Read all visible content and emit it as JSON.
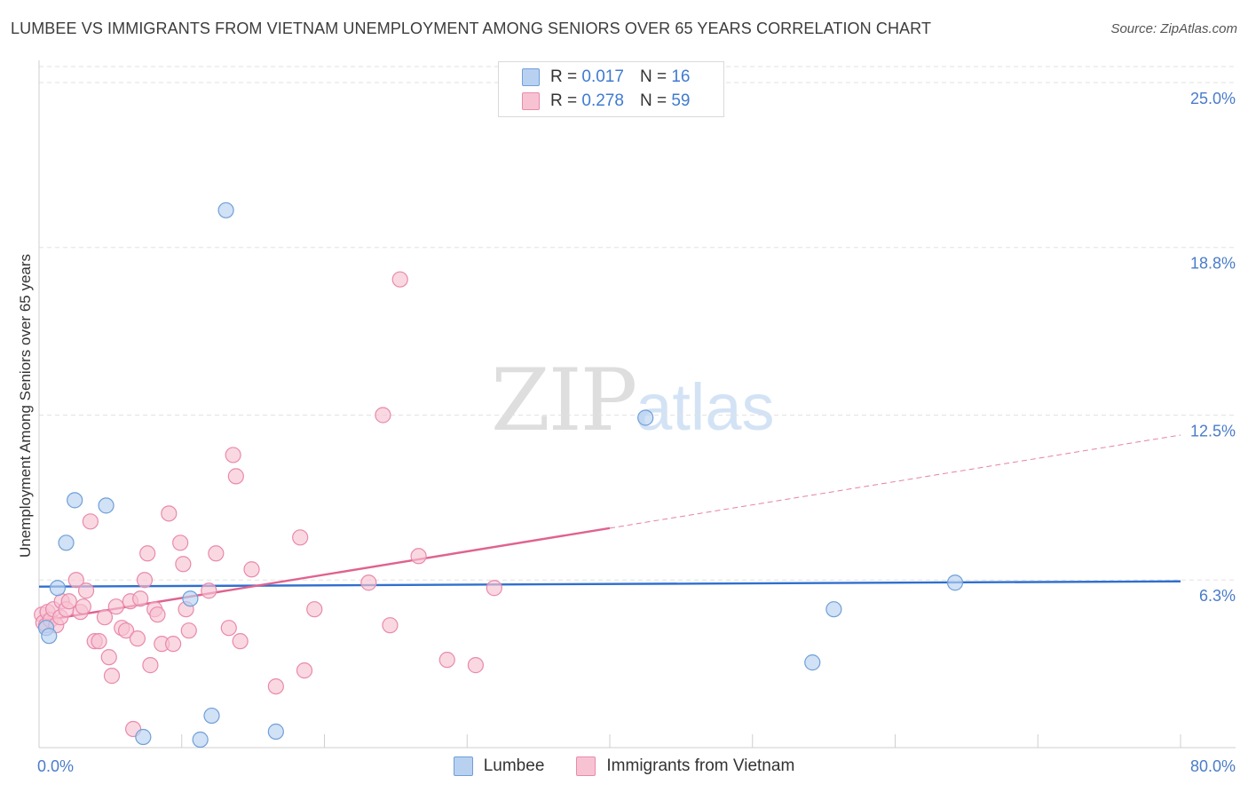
{
  "header": {
    "title": "LUMBEE VS IMMIGRANTS FROM VIETNAM UNEMPLOYMENT AMONG SENIORS OVER 65 YEARS CORRELATION CHART",
    "source": "Source: ZipAtlas.com"
  },
  "watermark": {
    "zip": "ZIP",
    "atlas": "atlas"
  },
  "legend": {
    "rows": [
      {
        "r_label": "R =",
        "r_value": "0.017",
        "n_label": "N =",
        "n_value": "16"
      },
      {
        "r_label": "R =",
        "r_value": "0.278",
        "n_label": "N =",
        "n_value": "59"
      }
    ]
  },
  "bottom_legend": {
    "series1": "Lumbee",
    "series2": "Immigrants from Vietnam"
  },
  "colors": {
    "lumbee_fill": "#b9d1f1",
    "lumbee_stroke": "#6f9fd8",
    "lumbee_line": "#2f6fcf",
    "viet_fill": "#f7c3d3",
    "viet_stroke": "#e98aab",
    "viet_line": "#e0628f",
    "tick_text": "#4a7cc9",
    "grid": "#e2e2e2"
  },
  "chart_data": {
    "type": "scatter",
    "title": "LUMBEE VS IMMIGRANTS FROM VIETNAM UNEMPLOYMENT AMONG SENIORS OVER 65 YEARS CORRELATION CHART",
    "xlabel": "",
    "ylabel": "Unemployment Among Seniors over 65 years",
    "xlim": [
      0,
      80
    ],
    "ylim": [
      0,
      25.6
    ],
    "x_tick_labels": [
      "0.0%",
      "80.0%"
    ],
    "y_ticks": [
      6.3,
      12.5,
      18.8,
      25.0
    ],
    "y_tick_labels": [
      "6.3%",
      "12.5%",
      "18.8%",
      "25.0%"
    ],
    "series": [
      {
        "name": "Lumbee",
        "points": [
          [
            0.5,
            4.5
          ],
          [
            0.7,
            4.2
          ],
          [
            1.3,
            6.0
          ],
          [
            1.9,
            7.7
          ],
          [
            2.5,
            9.3
          ],
          [
            4.7,
            9.1
          ],
          [
            7.3,
            0.4
          ],
          [
            10.6,
            5.6
          ],
          [
            11.3,
            0.3
          ],
          [
            12.1,
            1.2
          ],
          [
            13.1,
            20.2
          ],
          [
            16.6,
            0.6
          ],
          [
            42.5,
            12.4
          ],
          [
            54.2,
            3.2
          ],
          [
            55.7,
            5.2
          ],
          [
            64.2,
            6.2
          ]
        ],
        "trend": {
          "x": [
            0,
            80
          ],
          "y": [
            6.05,
            6.25
          ],
          "style": "solid"
        }
      },
      {
        "name": "Immigrants from Vietnam",
        "points": [
          [
            0.2,
            5.0
          ],
          [
            0.3,
            4.7
          ],
          [
            0.5,
            4.6
          ],
          [
            0.6,
            5.1
          ],
          [
            0.8,
            4.8
          ],
          [
            1.0,
            5.2
          ],
          [
            1.2,
            4.6
          ],
          [
            1.5,
            4.9
          ],
          [
            1.6,
            5.5
          ],
          [
            1.9,
            5.2
          ],
          [
            2.1,
            5.5
          ],
          [
            2.6,
            6.3
          ],
          [
            2.9,
            5.1
          ],
          [
            3.1,
            5.3
          ],
          [
            3.3,
            5.9
          ],
          [
            3.6,
            8.5
          ],
          [
            3.9,
            4.0
          ],
          [
            4.2,
            4.0
          ],
          [
            4.6,
            4.9
          ],
          [
            4.9,
            3.4
          ],
          [
            5.1,
            2.7
          ],
          [
            5.4,
            5.3
          ],
          [
            5.8,
            4.5
          ],
          [
            6.1,
            4.4
          ],
          [
            6.4,
            5.5
          ],
          [
            6.6,
            0.7
          ],
          [
            6.9,
            4.1
          ],
          [
            7.1,
            5.6
          ],
          [
            7.4,
            6.3
          ],
          [
            7.6,
            7.3
          ],
          [
            7.8,
            3.1
          ],
          [
            8.1,
            5.2
          ],
          [
            8.3,
            5.0
          ],
          [
            8.6,
            3.9
          ],
          [
            9.1,
            8.8
          ],
          [
            9.4,
            3.9
          ],
          [
            9.9,
            7.7
          ],
          [
            10.1,
            6.9
          ],
          [
            10.3,
            5.2
          ],
          [
            10.5,
            4.4
          ],
          [
            11.9,
            5.9
          ],
          [
            12.4,
            7.3
          ],
          [
            13.3,
            4.5
          ],
          [
            13.6,
            11.0
          ],
          [
            13.8,
            10.2
          ],
          [
            14.1,
            4.0
          ],
          [
            14.9,
            6.7
          ],
          [
            16.6,
            2.3
          ],
          [
            18.3,
            7.9
          ],
          [
            18.6,
            2.9
          ],
          [
            19.3,
            5.2
          ],
          [
            23.1,
            6.2
          ],
          [
            24.1,
            12.5
          ],
          [
            24.6,
            4.6
          ],
          [
            25.3,
            17.6
          ],
          [
            26.6,
            7.2
          ],
          [
            28.6,
            3.3
          ],
          [
            30.6,
            3.1
          ],
          [
            31.9,
            6.0
          ]
        ],
        "trend": {
          "x": [
            0,
            40
          ],
          "y": [
            4.75,
            8.25
          ],
          "x_dashed": [
            40,
            80
          ],
          "y_dashed": [
            8.25,
            11.75
          ]
        }
      }
    ]
  }
}
